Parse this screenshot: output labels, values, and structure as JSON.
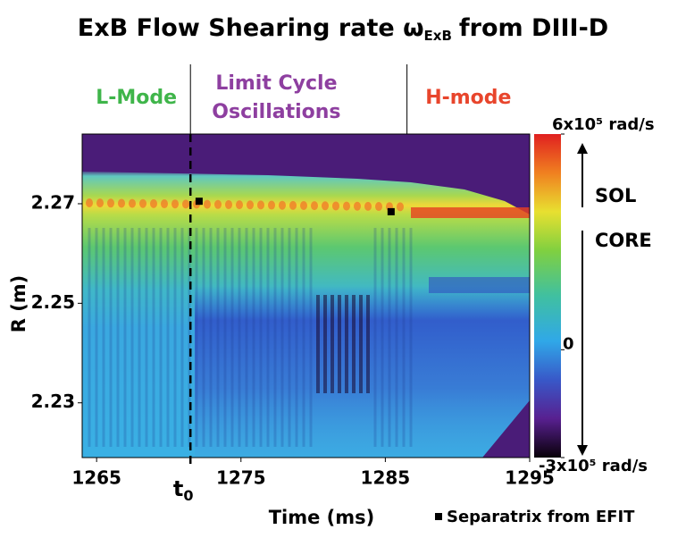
{
  "chart_data": {
    "type": "heatmap",
    "title": "ExB Flow Shearing rate ω",
    "title_subscript": "ExB",
    "title_suffix": "from DIII-D",
    "xlabel": "Time (ms)",
    "ylabel": "R (m)",
    "xlim": [
      1264,
      1295
    ],
    "xticks": [
      1265,
      1275,
      1285,
      1295
    ],
    "ylim": [
      2.219,
      2.284
    ],
    "yticks": [
      2.27,
      2.25,
      2.23
    ],
    "regions": [
      {
        "label": [
          "L-Mode"
        ],
        "color": "#3fb54a",
        "end": 1271.5
      },
      {
        "label": [
          "Limit Cycle",
          "Oscillations"
        ],
        "color": "#8e3fa0",
        "end": 1286.5
      },
      {
        "label": [
          "H-mode"
        ],
        "color": "#e8452c"
      }
    ],
    "t0": {
      "x": 1271.5,
      "label": "t",
      "subscript": "0"
    },
    "separatrix": {
      "name": "Separatrix from EFIT",
      "color": "#000000",
      "x": [
        1272.1,
        1285.4
      ],
      "y": [
        2.2705,
        2.2684
      ]
    },
    "colorbar": {
      "lim": [
        -300000,
        600000
      ],
      "ticks": [
        {
          "value": 600000,
          "label": "6x10⁵ rad/s"
        },
        0,
        {
          "value": -300000,
          "label": "-3x10⁵ rad/s"
        }
      ]
    },
    "annotations": [
      "SOL",
      "CORE"
    ]
  }
}
